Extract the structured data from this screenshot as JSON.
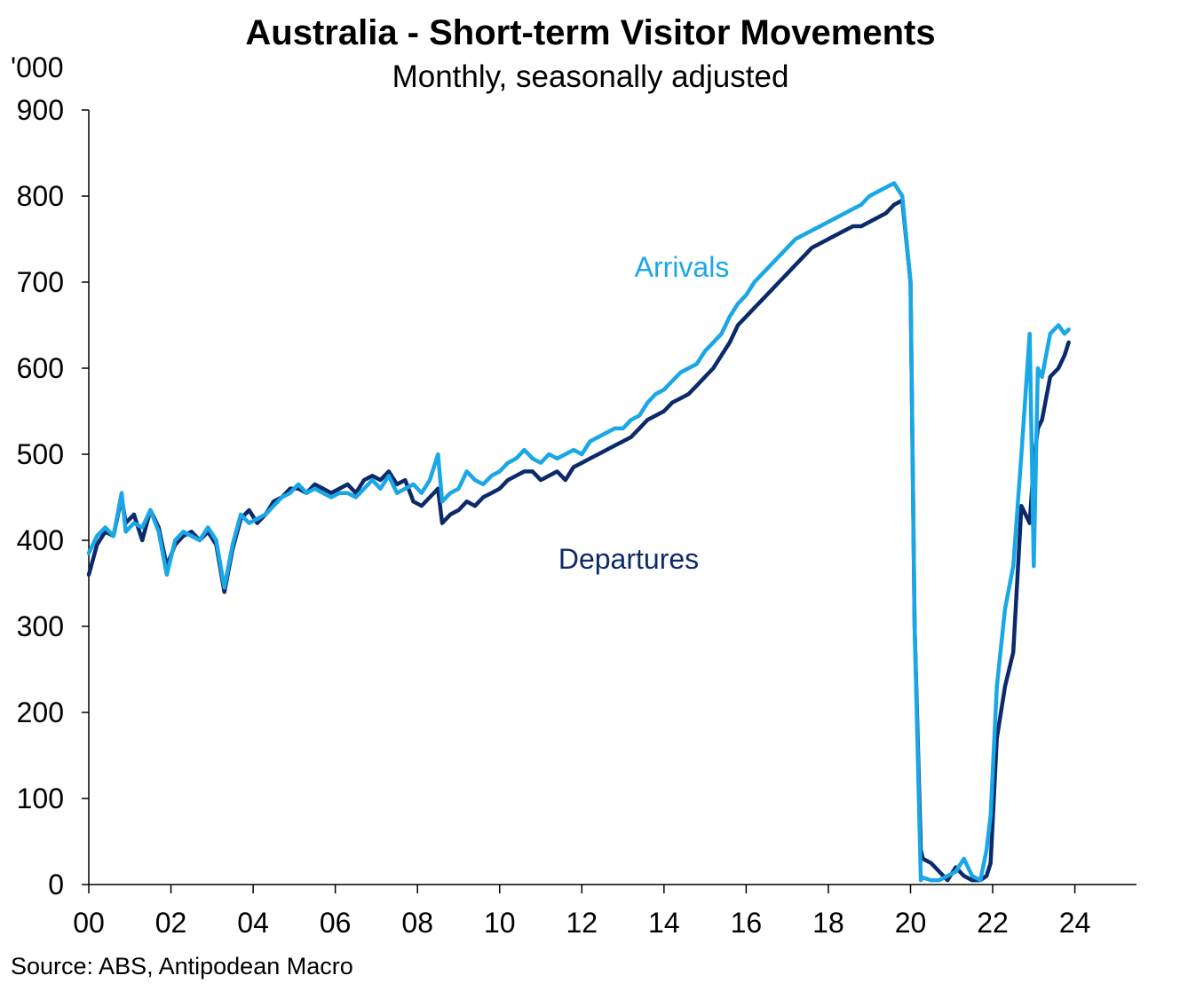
{
  "chart_data": {
    "type": "line",
    "title": "Australia  - Short-term Visitor Movements",
    "subtitle": "Monthly, seasonally adjusted",
    "ylabel": "'000",
    "source": "Source: ABS, Antipodean  Macro",
    "ylim": [
      0,
      900
    ],
    "xlim": [
      2000,
      2025.5
    ],
    "yticks": [
      0,
      100,
      200,
      300,
      400,
      500,
      600,
      700,
      800,
      900
    ],
    "ytick_labels": [
      "0",
      "100",
      "200",
      "300",
      "400",
      "500",
      "600",
      "700",
      "800",
      "900"
    ],
    "xticks": [
      2000,
      2002,
      2004,
      2006,
      2008,
      2010,
      2012,
      2014,
      2016,
      2018,
      2020,
      2022,
      2024
    ],
    "xtick_labels": [
      "00",
      "02",
      "04",
      "06",
      "08",
      "10",
      "12",
      "14",
      "16",
      "18",
      "20",
      "22",
      "24"
    ],
    "grid": false,
    "colors": {
      "arrivals": "#1aa7e6",
      "departures": "#0c2a6b"
    },
    "series": [
      {
        "name": "Arrivals",
        "x": [
          2000.0,
          2000.2,
          2000.4,
          2000.6,
          2000.8,
          2000.9,
          2001.1,
          2001.3,
          2001.5,
          2001.7,
          2001.9,
          2002.1,
          2002.3,
          2002.5,
          2002.7,
          2002.9,
          2003.1,
          2003.3,
          2003.5,
          2003.7,
          2003.9,
          2004.1,
          2004.3,
          2004.5,
          2004.7,
          2004.9,
          2005.1,
          2005.3,
          2005.5,
          2005.7,
          2005.9,
          2006.1,
          2006.3,
          2006.5,
          2006.7,
          2006.9,
          2007.1,
          2007.3,
          2007.5,
          2007.7,
          2007.9,
          2008.1,
          2008.3,
          2008.5,
          2008.6,
          2008.8,
          2009.0,
          2009.2,
          2009.4,
          2009.6,
          2009.8,
          2010.0,
          2010.2,
          2010.4,
          2010.6,
          2010.8,
          2011.0,
          2011.2,
          2011.4,
          2011.6,
          2011.8,
          2012.0,
          2012.2,
          2012.4,
          2012.6,
          2012.8,
          2013.0,
          2013.2,
          2013.4,
          2013.6,
          2013.8,
          2014.0,
          2014.2,
          2014.4,
          2014.6,
          2014.8,
          2015.0,
          2015.2,
          2015.4,
          2015.6,
          2015.8,
          2016.0,
          2016.2,
          2016.4,
          2016.6,
          2016.8,
          2017.0,
          2017.2,
          2017.4,
          2017.6,
          2017.8,
          2018.0,
          2018.2,
          2018.4,
          2018.6,
          2018.8,
          2019.0,
          2019.2,
          2019.4,
          2019.6,
          2019.8,
          2020.0,
          2020.1,
          2020.25,
          2020.3,
          2020.5,
          2020.7,
          2020.9,
          2021.1,
          2021.3,
          2021.5,
          2021.7,
          2021.85,
          2021.95,
          2022.1,
          2022.3,
          2022.5,
          2022.7,
          2022.9,
          2023.0,
          2023.1,
          2023.2,
          2023.4,
          2023.6,
          2023.75,
          2023.85
        ],
        "values": [
          385,
          405,
          415,
          405,
          455,
          410,
          420,
          415,
          435,
          410,
          360,
          400,
          410,
          405,
          400,
          415,
          400,
          345,
          395,
          430,
          420,
          425,
          430,
          440,
          450,
          455,
          465,
          455,
          460,
          455,
          450,
          455,
          455,
          450,
          460,
          470,
          460,
          475,
          455,
          460,
          465,
          455,
          470,
          500,
          445,
          455,
          460,
          480,
          470,
          465,
          475,
          480,
          490,
          495,
          505,
          495,
          490,
          500,
          495,
          500,
          505,
          500,
          515,
          520,
          525,
          530,
          530,
          540,
          545,
          560,
          570,
          575,
          585,
          595,
          600,
          605,
          620,
          630,
          640,
          660,
          675,
          685,
          700,
          710,
          720,
          730,
          740,
          750,
          755,
          760,
          765,
          770,
          775,
          780,
          785,
          790,
          800,
          805,
          810,
          815,
          800,
          700,
          300,
          5,
          8,
          5,
          5,
          10,
          15,
          30,
          10,
          5,
          40,
          80,
          230,
          320,
          370,
          500,
          640,
          370,
          600,
          590,
          640,
          650,
          640,
          645
        ]
      },
      {
        "name": "Departures",
        "x": [
          2000.0,
          2000.2,
          2000.4,
          2000.6,
          2000.8,
          2000.9,
          2001.1,
          2001.3,
          2001.5,
          2001.7,
          2001.9,
          2002.1,
          2002.3,
          2002.5,
          2002.7,
          2002.9,
          2003.1,
          2003.3,
          2003.5,
          2003.7,
          2003.9,
          2004.1,
          2004.3,
          2004.5,
          2004.7,
          2004.9,
          2005.1,
          2005.3,
          2005.5,
          2005.7,
          2005.9,
          2006.1,
          2006.3,
          2006.5,
          2006.7,
          2006.9,
          2007.1,
          2007.3,
          2007.5,
          2007.7,
          2007.9,
          2008.1,
          2008.3,
          2008.5,
          2008.6,
          2008.8,
          2009.0,
          2009.2,
          2009.4,
          2009.6,
          2009.8,
          2010.0,
          2010.2,
          2010.4,
          2010.6,
          2010.8,
          2011.0,
          2011.2,
          2011.4,
          2011.6,
          2011.8,
          2012.0,
          2012.2,
          2012.4,
          2012.6,
          2012.8,
          2013.0,
          2013.2,
          2013.4,
          2013.6,
          2013.8,
          2014.0,
          2014.2,
          2014.4,
          2014.6,
          2014.8,
          2015.0,
          2015.2,
          2015.4,
          2015.6,
          2015.8,
          2016.0,
          2016.2,
          2016.4,
          2016.6,
          2016.8,
          2017.0,
          2017.2,
          2017.4,
          2017.6,
          2017.8,
          2018.0,
          2018.2,
          2018.4,
          2018.6,
          2018.8,
          2019.0,
          2019.2,
          2019.4,
          2019.6,
          2019.8,
          2020.0,
          2020.1,
          2020.25,
          2020.3,
          2020.5,
          2020.7,
          2020.9,
          2021.1,
          2021.3,
          2021.5,
          2021.7,
          2021.85,
          2021.95,
          2022.1,
          2022.3,
          2022.5,
          2022.7,
          2022.9,
          2023.0,
          2023.1,
          2023.2,
          2023.4,
          2023.6,
          2023.75,
          2023.85
        ],
        "values": [
          360,
          395,
          410,
          405,
          450,
          420,
          430,
          400,
          435,
          415,
          370,
          395,
          405,
          410,
          400,
          410,
          395,
          340,
          390,
          425,
          435,
          420,
          430,
          445,
          450,
          460,
          460,
          455,
          465,
          460,
          455,
          460,
          465,
          455,
          470,
          475,
          470,
          480,
          465,
          470,
          445,
          440,
          450,
          460,
          420,
          430,
          435,
          445,
          440,
          450,
          455,
          460,
          470,
          475,
          480,
          480,
          470,
          475,
          480,
          470,
          485,
          490,
          495,
          500,
          505,
          510,
          515,
          520,
          530,
          540,
          545,
          550,
          560,
          565,
          570,
          580,
          590,
          600,
          615,
          630,
          650,
          660,
          670,
          680,
          690,
          700,
          710,
          720,
          730,
          740,
          745,
          750,
          755,
          760,
          765,
          765,
          770,
          775,
          780,
          790,
          795,
          700,
          300,
          40,
          30,
          25,
          15,
          5,
          20,
          10,
          5,
          5,
          10,
          25,
          170,
          230,
          270,
          440,
          420,
          490,
          530,
          540,
          590,
          600,
          615,
          630
        ]
      }
    ],
    "annotations": [
      {
        "text": "Arrivals",
        "series": "Arrivals"
      },
      {
        "text": "Departures",
        "series": "Departures"
      }
    ]
  }
}
